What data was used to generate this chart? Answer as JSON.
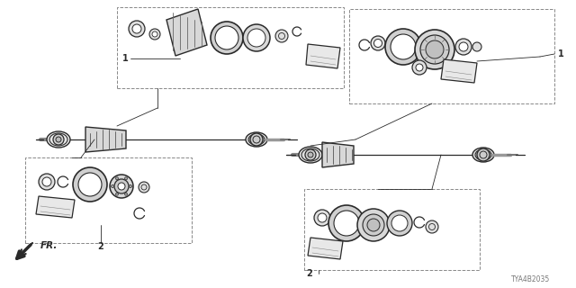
{
  "diagram_code": "TYA4B2035",
  "bg_color": "#ffffff",
  "lc": "#2a2a2a",
  "lc_light": "#666666",
  "fr_label": "FR.",
  "label_1": "1",
  "label_2": "2",
  "fig_width": 6.4,
  "fig_height": 3.2,
  "dpi": 100
}
